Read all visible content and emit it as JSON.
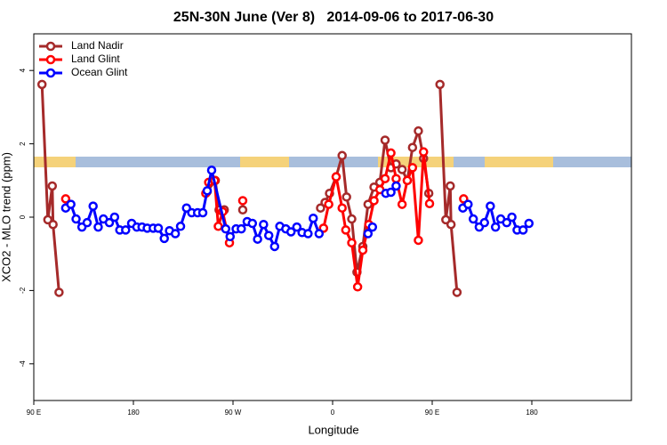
{
  "chart_data": {
    "type": "line",
    "title": "25N-30N June (Ver 8)   2014-09-06 to 2017-06-30",
    "xlabel": "Longitude",
    "ylabel": "XCO2 - MLO trend (ppm)",
    "xlim": [
      -270,
      270
    ],
    "ylim": [
      -5,
      5
    ],
    "xticks": [
      {
        "value": -270,
        "label": "90 E"
      },
      {
        "value": -180,
        "label": "180"
      },
      {
        "value": -90,
        "label": "90 W"
      },
      0,
      {
        "value": 90,
        "label": "90 E"
      },
      180
    ],
    "yticks": [
      -4,
      -2,
      0,
      2,
      4
    ],
    "legend": "top-left",
    "series": [
      {
        "name": "Land Nadir",
        "color": "#a52a2a",
        "x": [
          -262.6,
          -257.3,
          -253.3,
          -252.6,
          -247.2,
          null,
          -113.3,
          -106.0,
          -102.6,
          -97.9,
          null,
          -81.2,
          null,
          -10.9,
          -6.8,
          -2.8,
          3.2,
          8.6,
          12.6,
          17.3,
          22.0,
          27.3,
          32.0,
          37.4,
          42.7,
          47.4,
          52.7,
          57.4,
          62.8,
          67.5,
          72.2,
          77.5,
          82.2,
          86.9,
          null,
          97.0,
          102.3,
          106.3,
          107.0,
          112.4
        ],
        "values": [
          3.62,
          -0.07,
          0.85,
          -0.2,
          -2.05,
          null,
          0.7,
          1.0,
          0.2,
          0.2,
          null,
          0.2,
          null,
          0.25,
          0.4,
          0.65,
          1.1,
          1.68,
          0.55,
          -0.05,
          -1.5,
          -0.8,
          0.35,
          0.82,
          0.95,
          2.1,
          1.35,
          1.45,
          1.3,
          1.0,
          1.9,
          2.35,
          1.6,
          0.65,
          null,
          3.62,
          -0.07,
          0.85,
          -0.2,
          -2.05
        ]
      },
      {
        "name": "Land Glint",
        "color": "#ff0000",
        "x": [
          -241.2,
          null,
          -114.6,
          -112.0,
          -106.6,
          -103.3,
          -99.3,
          -93.2,
          null,
          -81.2,
          null,
          -8.2,
          -3.5,
          3.2,
          8.6,
          11.9,
          17.3,
          22.6,
          27.3,
          32.7,
          37.4,
          42.7,
          47.4,
          52.7,
          57.4,
          62.8,
          67.5,
          72.2,
          77.5,
          82.2,
          87.6,
          null,
          118.4
        ],
        "values": [
          0.5,
          null,
          0.65,
          0.95,
          1.0,
          -0.25,
          0.15,
          -0.7,
          null,
          0.45,
          null,
          -0.3,
          0.35,
          1.1,
          0.25,
          -0.35,
          -0.7,
          -1.9,
          -0.9,
          -0.2,
          0.45,
          0.75,
          1.05,
          1.75,
          1.05,
          0.35,
          1.0,
          1.35,
          -0.63,
          1.78,
          0.37,
          null,
          0.5
        ]
      },
      {
        "name": "Ocean Glint",
        "color": "#0000ff",
        "x": [
          -241.2,
          -236.5,
          -231.8,
          -226.5,
          -221.8,
          -216.4,
          -211.8,
          -207.1,
          -201.7,
          -197.0,
          -192.3,
          -187.0,
          -181.6,
          -176.9,
          -172.2,
          -167.5,
          -162.1,
          -157.5,
          -152.1,
          -147.4,
          -142.1,
          -137.4,
          -132.0,
          -127.3,
          -122.0,
          -117.3,
          -113.3,
          -109.3,
          -96.6,
          -92.6,
          -87.2,
          -82.5,
          -77.2,
          -72.5,
          -67.8,
          -62.4,
          -57.7,
          -52.4,
          -47.7,
          -42.3,
          -37.6,
          -32.3,
          -27.6,
          -22.2,
          -17.5,
          -12.2,
          null,
          32.0,
          36.0,
          null,
          48.1,
          52.7,
          57.4,
          null,
          117.7,
          122.4,
          127.1,
          132.5,
          137.2,
          142.5,
          147.2,
          151.9,
          157.3,
          162.0,
          166.7,
          172.1,
          177.4
        ],
        "values": [
          0.25,
          0.35,
          -0.05,
          -0.27,
          -0.15,
          0.3,
          -0.27,
          -0.05,
          -0.15,
          0,
          -0.35,
          -0.35,
          -0.17,
          -0.27,
          -0.27,
          -0.3,
          -0.3,
          -0.3,
          -0.58,
          -0.37,
          -0.45,
          -0.25,
          0.25,
          0.12,
          0.12,
          0.12,
          0.72,
          1.28,
          -0.32,
          -0.53,
          -0.32,
          -0.32,
          -0.12,
          -0.17,
          -0.6,
          -0.2,
          -0.5,
          -0.8,
          -0.25,
          -0.32,
          -0.4,
          -0.27,
          -0.42,
          -0.45,
          -0.03,
          -0.45,
          null,
          -0.45,
          -0.27,
          null,
          0.65,
          0.68,
          0.85,
          null,
          0.25,
          0.35,
          -0.05,
          -0.27,
          -0.15,
          0.3,
          -0.27,
          -0.05,
          -0.15,
          0,
          -0.35,
          -0.35,
          -0.17
        ]
      }
    ]
  }
}
